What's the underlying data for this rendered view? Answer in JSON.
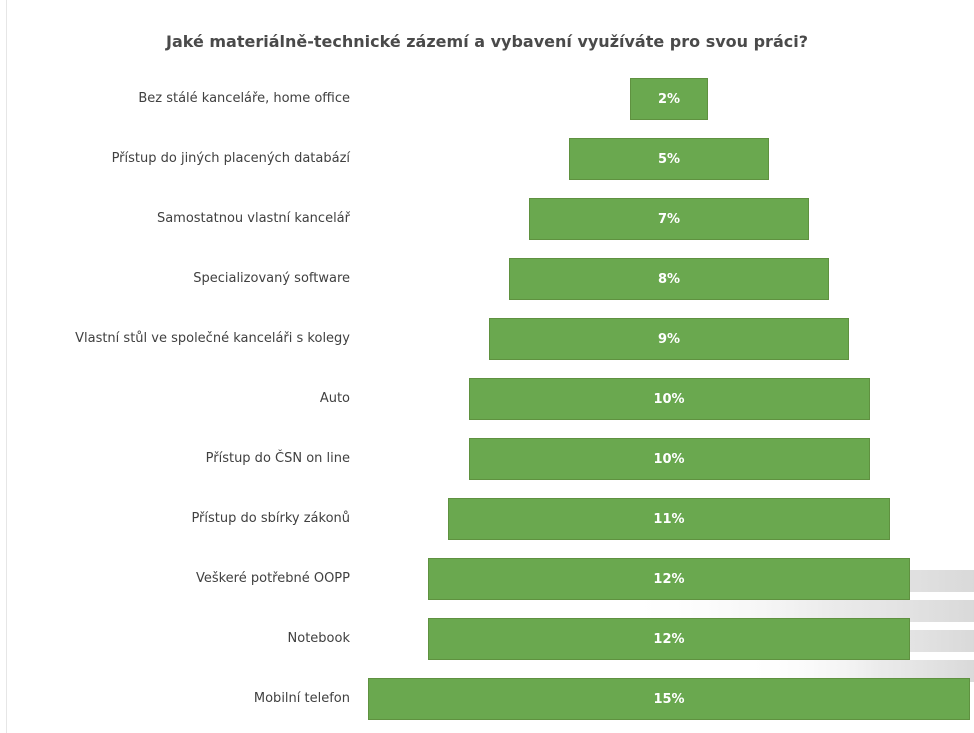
{
  "chart_data": {
    "type": "bar",
    "orientation": "horizontal",
    "layout": "centered-funnel",
    "title": "Jaké materiálně-technické zázemí a vybavení využíváte pro svou práci?",
    "xlabel": "",
    "ylabel": "",
    "categories": [
      "Bez stálé kanceláře, home office",
      "Přístup do jiných placených databází",
      "Samostatnou vlastní kancelář",
      "Specializovaný software",
      "Vlastní stůl ve společné kanceláři s kolegy",
      "Auto",
      "Přístup do ČSN on line",
      "Přístup do sbírky zákonů",
      "Veškeré potřebné OOPP",
      "Notebook",
      "Mobilní telefon"
    ],
    "values": [
      2,
      5,
      7,
      8,
      9,
      10,
      10,
      11,
      12,
      12,
      15
    ],
    "value_labels": [
      "2%",
      "5%",
      "7%",
      "8%",
      "9%",
      "10%",
      "10%",
      "11%",
      "12%",
      "12%",
      "15%"
    ],
    "unit": "%",
    "grid": false,
    "legend": "none",
    "colors": {
      "bar": "#6aa84f",
      "bar_border": "#5f9140",
      "label_text": "#404040",
      "title_text": "#4a4a4a",
      "value_text": "#ffffff"
    }
  }
}
